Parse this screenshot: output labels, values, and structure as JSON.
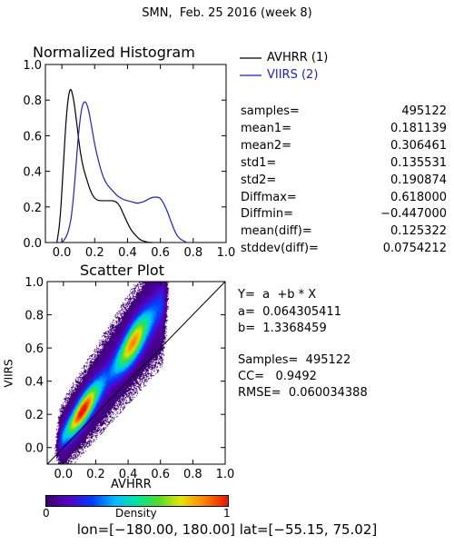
{
  "header": {
    "title": "SMN,  Feb. 25 2016 (week 8)"
  },
  "histogram": {
    "title": "Normalized Histogram",
    "legend": [
      {
        "label": "AVHRR (1)",
        "color": "#000000"
      },
      {
        "label": "VIIRS (2)",
        "color": "#1f1fc8"
      }
    ],
    "stats": [
      {
        "label": "samples=",
        "value": "495122"
      },
      {
        "label": "mean1=",
        "value": "0.181139"
      },
      {
        "label": "mean2=",
        "value": "0.306461"
      },
      {
        "label": "std1=",
        "value": "0.135531"
      },
      {
        "label": "std2=",
        "value": "0.190874"
      },
      {
        "label": "Diffmax=",
        "value": "0.618000"
      },
      {
        "label": "Diffmin=",
        "value": "−0.447000"
      },
      {
        "label": "mean(diff)=",
        "value": "0.125322"
      },
      {
        "label": "stddev(diff)=",
        "value": "0.0754212"
      }
    ]
  },
  "scatter": {
    "title": "Scatter Plot",
    "xlabel": "AVHRR",
    "ylabel": "VIIRS",
    "fit": {
      "equation": "Y=  a  +b * X",
      "a_text": "a=  0.064305411",
      "b_text": "b=  1.3368459"
    },
    "summary": {
      "samples_text": "Samples=  495122",
      "cc_text": "CC=   0.9492",
      "rmse_text": "RMSE=  0.060034388"
    }
  },
  "colorbar": {
    "label": "Density",
    "min_label": "0",
    "max_label": "1"
  },
  "footer": {
    "extent": "lon=[−180.00, 180.00] lat=[−55.15, 75.02]"
  },
  "chart_data": [
    {
      "type": "line",
      "title": "Normalized Histogram",
      "xlabel": "",
      "ylabel": "",
      "xlim": [
        -0.1,
        1.0
      ],
      "ylim": [
        0.0,
        1.0
      ],
      "xticks": [
        "0.0",
        "0.2",
        "0.4",
        "0.6",
        "0.8",
        "1.0"
      ],
      "yticks": [
        "0.0",
        "0.2",
        "0.4",
        "0.6",
        "0.8",
        "1.0"
      ],
      "series": [
        {
          "name": "AVHRR (1)",
          "color": "#000000",
          "x": [
            -0.03,
            -0.01,
            0.01,
            0.03,
            0.05,
            0.07,
            0.09,
            0.11,
            0.13,
            0.15,
            0.17,
            0.19,
            0.21,
            0.23,
            0.25,
            0.27,
            0.29,
            0.31,
            0.33,
            0.35,
            0.37,
            0.39,
            0.41,
            0.43,
            0.45,
            0.47,
            0.49,
            0.51,
            0.53,
            0.55
          ],
          "y": [
            0.0,
            0.12,
            0.45,
            0.75,
            0.88,
            0.82,
            0.68,
            0.52,
            0.42,
            0.36,
            0.3,
            0.26,
            0.24,
            0.235,
            0.235,
            0.235,
            0.235,
            0.235,
            0.23,
            0.21,
            0.17,
            0.13,
            0.09,
            0.06,
            0.04,
            0.02,
            0.01,
            0.005,
            0.0,
            0.0
          ]
        },
        {
          "name": "VIIRS (2)",
          "color": "#1f1fc8",
          "x": [
            0.0,
            0.02,
            0.04,
            0.06,
            0.08,
            0.1,
            0.12,
            0.14,
            0.16,
            0.18,
            0.2,
            0.22,
            0.24,
            0.26,
            0.28,
            0.3,
            0.32,
            0.34,
            0.36,
            0.38,
            0.4,
            0.42,
            0.44,
            0.46,
            0.48,
            0.5,
            0.52,
            0.54,
            0.56,
            0.58,
            0.6,
            0.62,
            0.64,
            0.66,
            0.68,
            0.7,
            0.72,
            0.74,
            0.76
          ],
          "y": [
            0.0,
            0.02,
            0.06,
            0.15,
            0.35,
            0.6,
            0.76,
            0.8,
            0.76,
            0.66,
            0.55,
            0.47,
            0.4,
            0.35,
            0.32,
            0.3,
            0.28,
            0.26,
            0.25,
            0.24,
            0.235,
            0.23,
            0.225,
            0.22,
            0.225,
            0.23,
            0.24,
            0.25,
            0.255,
            0.255,
            0.25,
            0.22,
            0.18,
            0.13,
            0.08,
            0.04,
            0.02,
            0.01,
            0.0
          ]
        }
      ]
    },
    {
      "type": "heatmap",
      "title": "Scatter Plot",
      "xlabel": "AVHRR",
      "ylabel": "VIIRS",
      "xlim": [
        -0.1,
        1.0
      ],
      "ylim": [
        -0.1,
        1.0
      ],
      "xticks": [
        "0.0",
        "0.2",
        "0.4",
        "0.6",
        "0.8",
        "1.0"
      ],
      "yticks": [
        "0.0",
        "0.2",
        "0.4",
        "0.6",
        "0.8",
        "1.0"
      ],
      "reference_line": "1:1",
      "fit": {
        "a": 0.064305411,
        "b": 1.3368459
      },
      "density_band": {
        "x_range": [
          0.0,
          0.62
        ],
        "peak_regions": [
          [
            0.05,
            0.22
          ],
          [
            0.35,
            0.5
          ]
        ]
      }
    }
  ]
}
